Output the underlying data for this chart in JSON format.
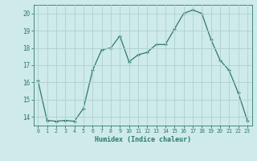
{
  "x": [
    0,
    1,
    2,
    3,
    4,
    5,
    6,
    7,
    8,
    9,
    10,
    11,
    12,
    13,
    14,
    15,
    16,
    17,
    18,
    19,
    20,
    21,
    22,
    23
  ],
  "y": [
    16.1,
    13.8,
    13.75,
    13.8,
    13.75,
    14.5,
    16.7,
    17.9,
    18.0,
    18.7,
    17.2,
    17.6,
    17.75,
    18.2,
    18.2,
    19.1,
    20.0,
    20.2,
    20.0,
    18.5,
    17.3,
    16.7,
    15.4,
    13.8
  ],
  "xlabel": "Humidex (Indice chaleur)",
  "ylim": [
    13.5,
    20.5
  ],
  "xlim": [
    -0.5,
    23.5
  ],
  "line_color": "#2d7a6a",
  "bg_color": "#ceeaea",
  "grid_color": "#aed0d0",
  "yticks": [
    14,
    15,
    16,
    17,
    18,
    19,
    20
  ],
  "xticks": [
    0,
    1,
    2,
    3,
    4,
    5,
    6,
    7,
    8,
    9,
    10,
    11,
    12,
    13,
    14,
    15,
    16,
    17,
    18,
    19,
    20,
    21,
    22,
    23
  ]
}
